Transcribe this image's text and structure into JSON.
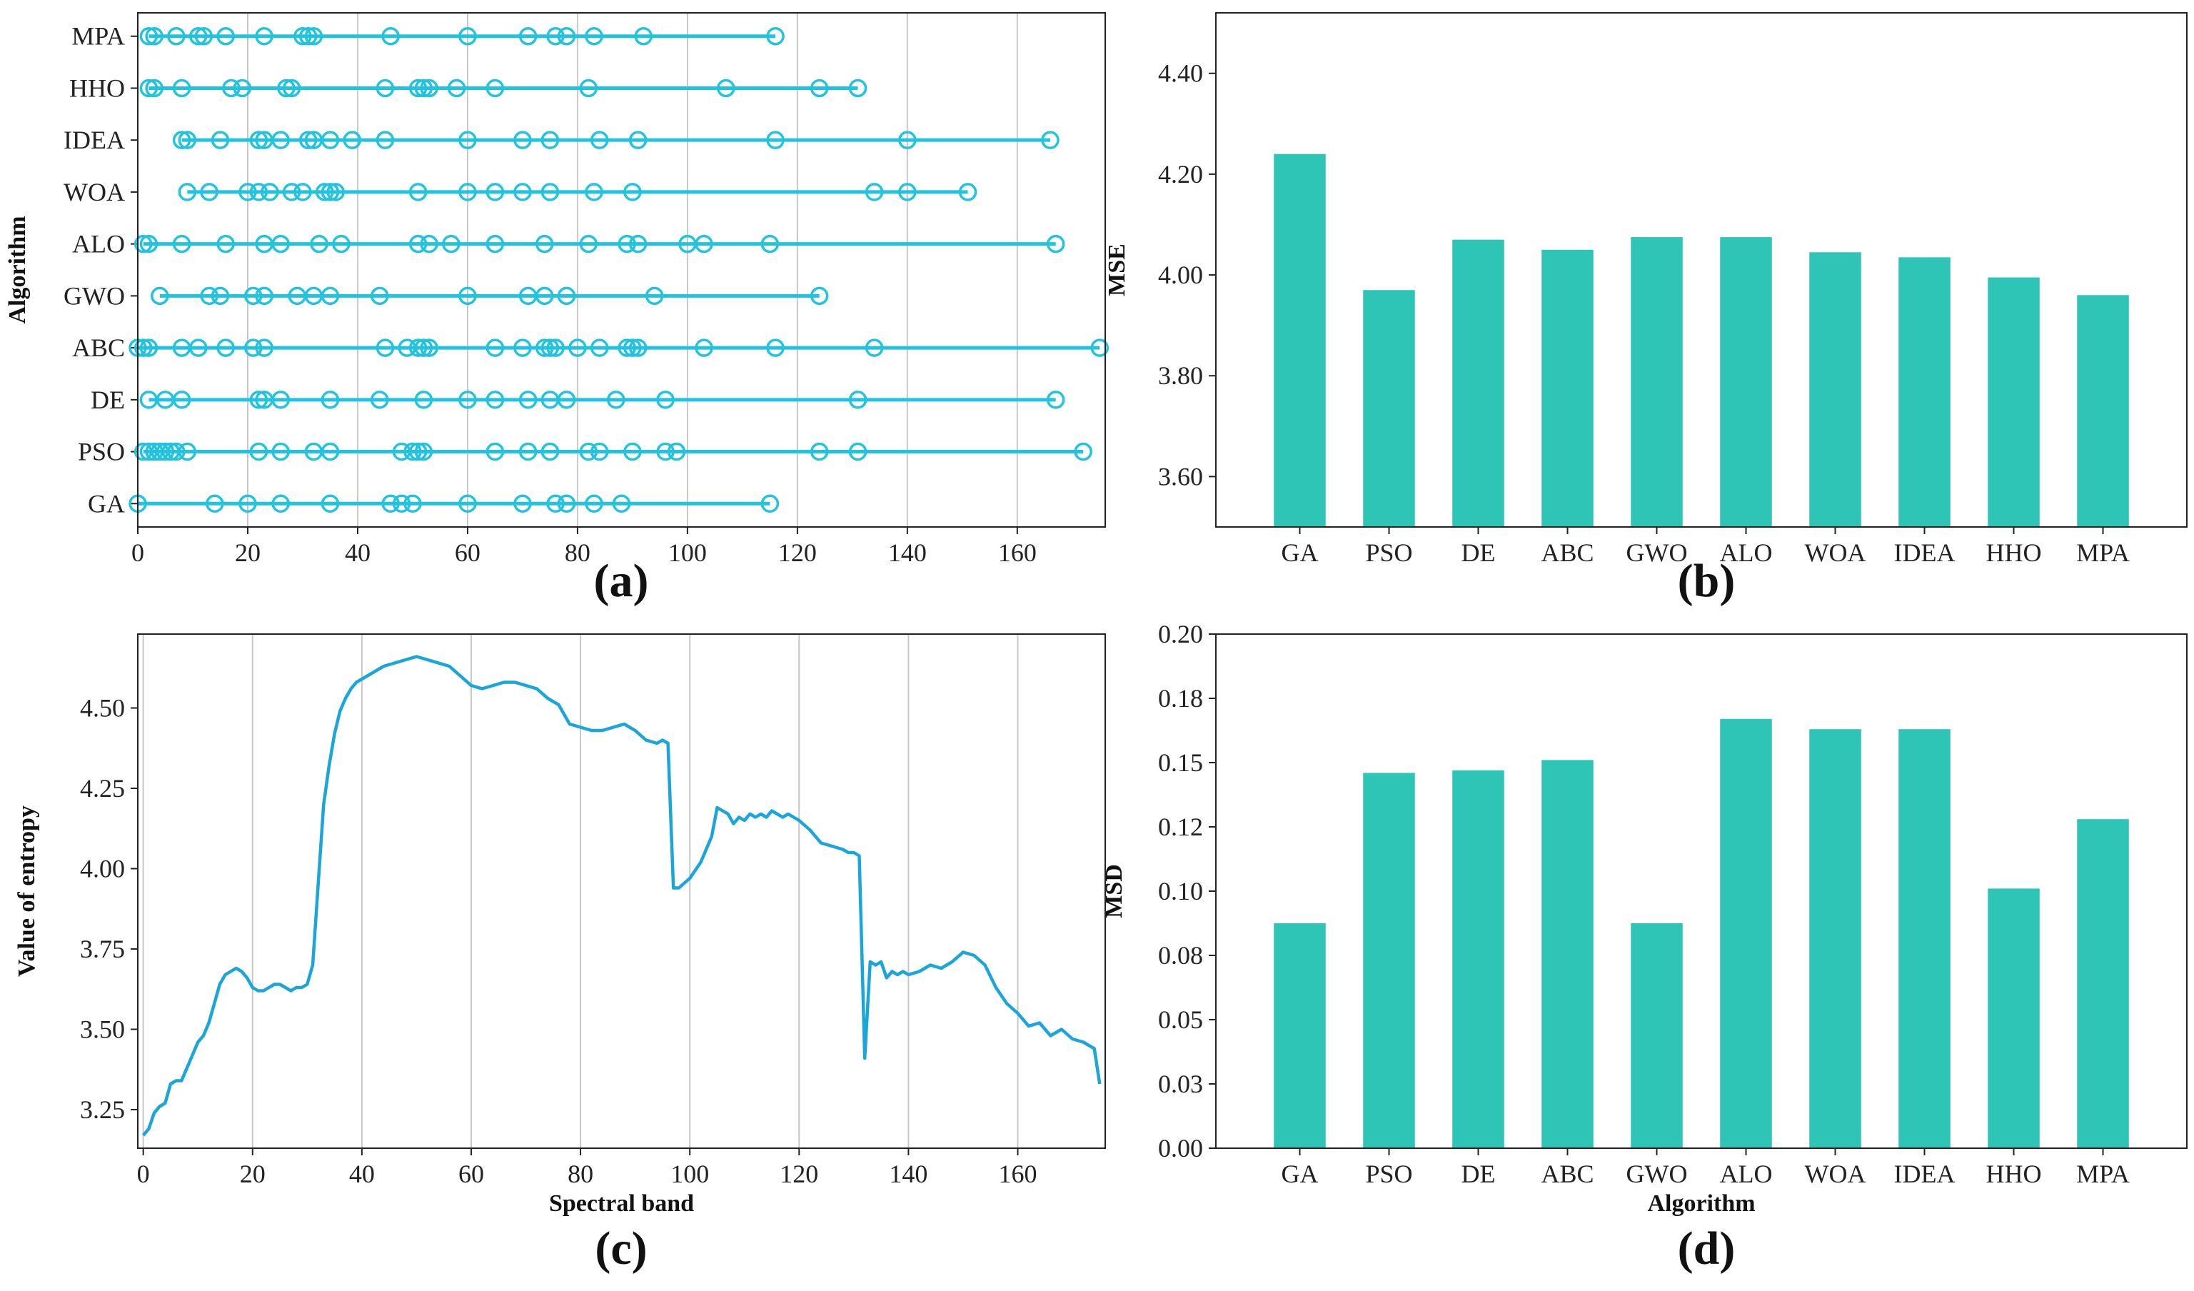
{
  "colors": {
    "line_a": "#22c3df",
    "bar": "#2ec4b6",
    "line_c": "#1ba6da"
  },
  "chart_data": [
    {
      "panel": "(a)",
      "type": "scatter",
      "ylabel": "Algorithm",
      "xlabel": "",
      "categories": [
        "GA",
        "PSO",
        "DE",
        "ABC",
        "GWO",
        "ALO",
        "WOA",
        "IDEA",
        "HHO",
        "MPA"
      ],
      "xlim": [
        0,
        176
      ],
      "xticks": [
        0,
        20,
        40,
        60,
        80,
        100,
        120,
        140,
        160
      ],
      "xtick_labels": [
        "0",
        "20",
        "40",
        "60",
        "80",
        "100",
        "120",
        "140",
        "160"
      ],
      "grid": "vertical",
      "series": [
        {
          "category": "GA",
          "points": [
            0,
            14,
            20,
            26,
            35,
            46,
            48,
            50,
            60,
            70,
            76,
            78,
            83,
            88,
            115
          ]
        },
        {
          "category": "PSO",
          "points": [
            1,
            2,
            3,
            4,
            5,
            6,
            7,
            9,
            22,
            26,
            32,
            35,
            48,
            50,
            51,
            52,
            65,
            71,
            75,
            82,
            84,
            90,
            96,
            98,
            124,
            131,
            172
          ]
        },
        {
          "category": "DE",
          "points": [
            2,
            5,
            8,
            22,
            23,
            26,
            35,
            44,
            52,
            60,
            65,
            71,
            75,
            78,
            87,
            96,
            131,
            167
          ]
        },
        {
          "category": "ABC",
          "points": [
            0,
            1,
            2,
            8,
            11,
            16,
            21,
            23,
            45,
            49,
            51,
            52,
            53,
            65,
            70,
            74,
            75,
            76,
            80,
            84,
            89,
            90,
            91,
            103,
            116,
            134,
            175
          ]
        },
        {
          "category": "GWO",
          "points": [
            4,
            13,
            15,
            21,
            23,
            29,
            32,
            35,
            44,
            60,
            71,
            74,
            78,
            94,
            124
          ]
        },
        {
          "category": "ALO",
          "points": [
            1,
            2,
            8,
            16,
            23,
            26,
            33,
            37,
            51,
            53,
            57,
            65,
            74,
            82,
            89,
            91,
            100,
            103,
            115,
            167
          ]
        },
        {
          "category": "WOA",
          "points": [
            9,
            13,
            20,
            22,
            24,
            28,
            30,
            34,
            35,
            36,
            51,
            60,
            65,
            70,
            75,
            83,
            90,
            134,
            140,
            151
          ]
        },
        {
          "category": "IDEA",
          "points": [
            8,
            9,
            15,
            22,
            23,
            26,
            31,
            32,
            35,
            39,
            45,
            60,
            70,
            75,
            84,
            91,
            116,
            140,
            166
          ]
        },
        {
          "category": "HHO",
          "points": [
            2,
            3,
            8,
            17,
            19,
            27,
            28,
            45,
            51,
            52,
            53,
            58,
            65,
            82,
            107,
            124,
            131
          ]
        },
        {
          "category": "MPA",
          "points": [
            2,
            3,
            7,
            11,
            12,
            16,
            23,
            30,
            31,
            32,
            46,
            60,
            71,
            76,
            78,
            83,
            92,
            116
          ]
        }
      ]
    },
    {
      "panel": "(b)",
      "type": "bar",
      "ylabel": "MSE",
      "xlabel": "",
      "categories": [
        "GA",
        "PSO",
        "DE",
        "ABC",
        "GWO",
        "ALO",
        "WOA",
        "IDEA",
        "HHO",
        "MPA"
      ],
      "values": [
        4.24,
        3.97,
        4.07,
        4.05,
        4.075,
        4.075,
        4.045,
        4.035,
        3.995,
        3.96
      ],
      "ylim": [
        3.5,
        4.52
      ],
      "yticks": [
        3.6,
        3.8,
        4.0,
        4.2,
        4.4
      ],
      "ytick_labels": [
        "3.60",
        "3.80",
        "4.00",
        "4.20",
        "4.40"
      ],
      "grid": "none"
    },
    {
      "panel": "(c)",
      "type": "line",
      "ylabel": "Value of entropy",
      "xlabel": "Spectral band",
      "xlim": [
        -1,
        176
      ],
      "ylim": [
        3.13,
        4.73
      ],
      "xticks": [
        0,
        20,
        40,
        60,
        80,
        100,
        120,
        140,
        160
      ],
      "xtick_labels": [
        "0",
        "20",
        "40",
        "60",
        "80",
        "100",
        "120",
        "140",
        "160"
      ],
      "yticks": [
        3.25,
        3.5,
        3.75,
        4.0,
        4.25,
        4.5
      ],
      "ytick_labels": [
        "3.25",
        "3.50",
        "3.75",
        "4.00",
        "4.25",
        "4.50"
      ],
      "grid": "vertical",
      "x": [
        0,
        1,
        2,
        3,
        4,
        5,
        6,
        7,
        8,
        9,
        10,
        11,
        12,
        13,
        14,
        15,
        16,
        17,
        18,
        19,
        20,
        21,
        22,
        23,
        24,
        25,
        26,
        27,
        28,
        29,
        30,
        31,
        32,
        33,
        34,
        35,
        36,
        37,
        38,
        39,
        40,
        42,
        44,
        46,
        48,
        50,
        52,
        54,
        56,
        58,
        60,
        62,
        64,
        66,
        68,
        70,
        72,
        74,
        76,
        78,
        80,
        82,
        84,
        86,
        88,
        90,
        92,
        94,
        95,
        96,
        97,
        98,
        100,
        102,
        104,
        105,
        106,
        107,
        108,
        109,
        110,
        111,
        112,
        113,
        114,
        115,
        116,
        117,
        118,
        119,
        120,
        122,
        124,
        126,
        128,
        129,
        130,
        131,
        132,
        133,
        134,
        135,
        136,
        137,
        138,
        139,
        140,
        142,
        144,
        146,
        148,
        150,
        152,
        154,
        156,
        158,
        160,
        162,
        164,
        166,
        168,
        170,
        172,
        174,
        175
      ],
      "y": [
        3.17,
        3.19,
        3.24,
        3.26,
        3.27,
        3.33,
        3.34,
        3.34,
        3.38,
        3.42,
        3.46,
        3.48,
        3.52,
        3.58,
        3.64,
        3.67,
        3.68,
        3.69,
        3.68,
        3.66,
        3.63,
        3.62,
        3.62,
        3.63,
        3.64,
        3.64,
        3.63,
        3.62,
        3.63,
        3.63,
        3.64,
        3.7,
        3.95,
        4.2,
        4.32,
        4.42,
        4.49,
        4.53,
        4.56,
        4.58,
        4.59,
        4.61,
        4.63,
        4.64,
        4.65,
        4.66,
        4.65,
        4.64,
        4.63,
        4.6,
        4.57,
        4.56,
        4.57,
        4.58,
        4.58,
        4.57,
        4.56,
        4.53,
        4.51,
        4.45,
        4.44,
        4.43,
        4.43,
        4.44,
        4.45,
        4.43,
        4.4,
        4.39,
        4.4,
        4.39,
        3.94,
        3.94,
        3.97,
        4.02,
        4.1,
        4.19,
        4.18,
        4.17,
        4.14,
        4.16,
        4.15,
        4.17,
        4.16,
        4.17,
        4.16,
        4.18,
        4.17,
        4.16,
        4.17,
        4.16,
        4.15,
        4.12,
        4.08,
        4.07,
        4.06,
        4.05,
        4.05,
        4.04,
        3.41,
        3.71,
        3.7,
        3.71,
        3.66,
        3.68,
        3.67,
        3.68,
        3.67,
        3.68,
        3.7,
        3.69,
        3.71,
        3.74,
        3.73,
        3.7,
        3.63,
        3.58,
        3.55,
        3.51,
        3.52,
        3.48,
        3.5,
        3.47,
        3.46,
        3.44,
        3.33
      ]
    },
    {
      "panel": "(d)",
      "type": "bar",
      "ylabel": "MSD",
      "xlabel": "Algorithm",
      "categories": [
        "GA",
        "PSO",
        "DE",
        "ABC",
        "GWO",
        "ALO",
        "WOA",
        "IDEA",
        "HHO",
        "MPA"
      ],
      "values": [
        0.0875,
        0.146,
        0.147,
        0.151,
        0.0875,
        0.167,
        0.163,
        0.163,
        0.101,
        0.128
      ],
      "ylim": [
        0.0,
        0.2
      ],
      "yticks": [
        0.0,
        0.025,
        0.05,
        0.075,
        0.1,
        0.125,
        0.15,
        0.175,
        0.2
      ],
      "ytick_labels": [
        "0.00",
        "0.03",
        "0.05",
        "0.08",
        "0.10",
        "0.12",
        "0.15",
        "0.18",
        "0.20"
      ],
      "grid": "none"
    }
  ]
}
